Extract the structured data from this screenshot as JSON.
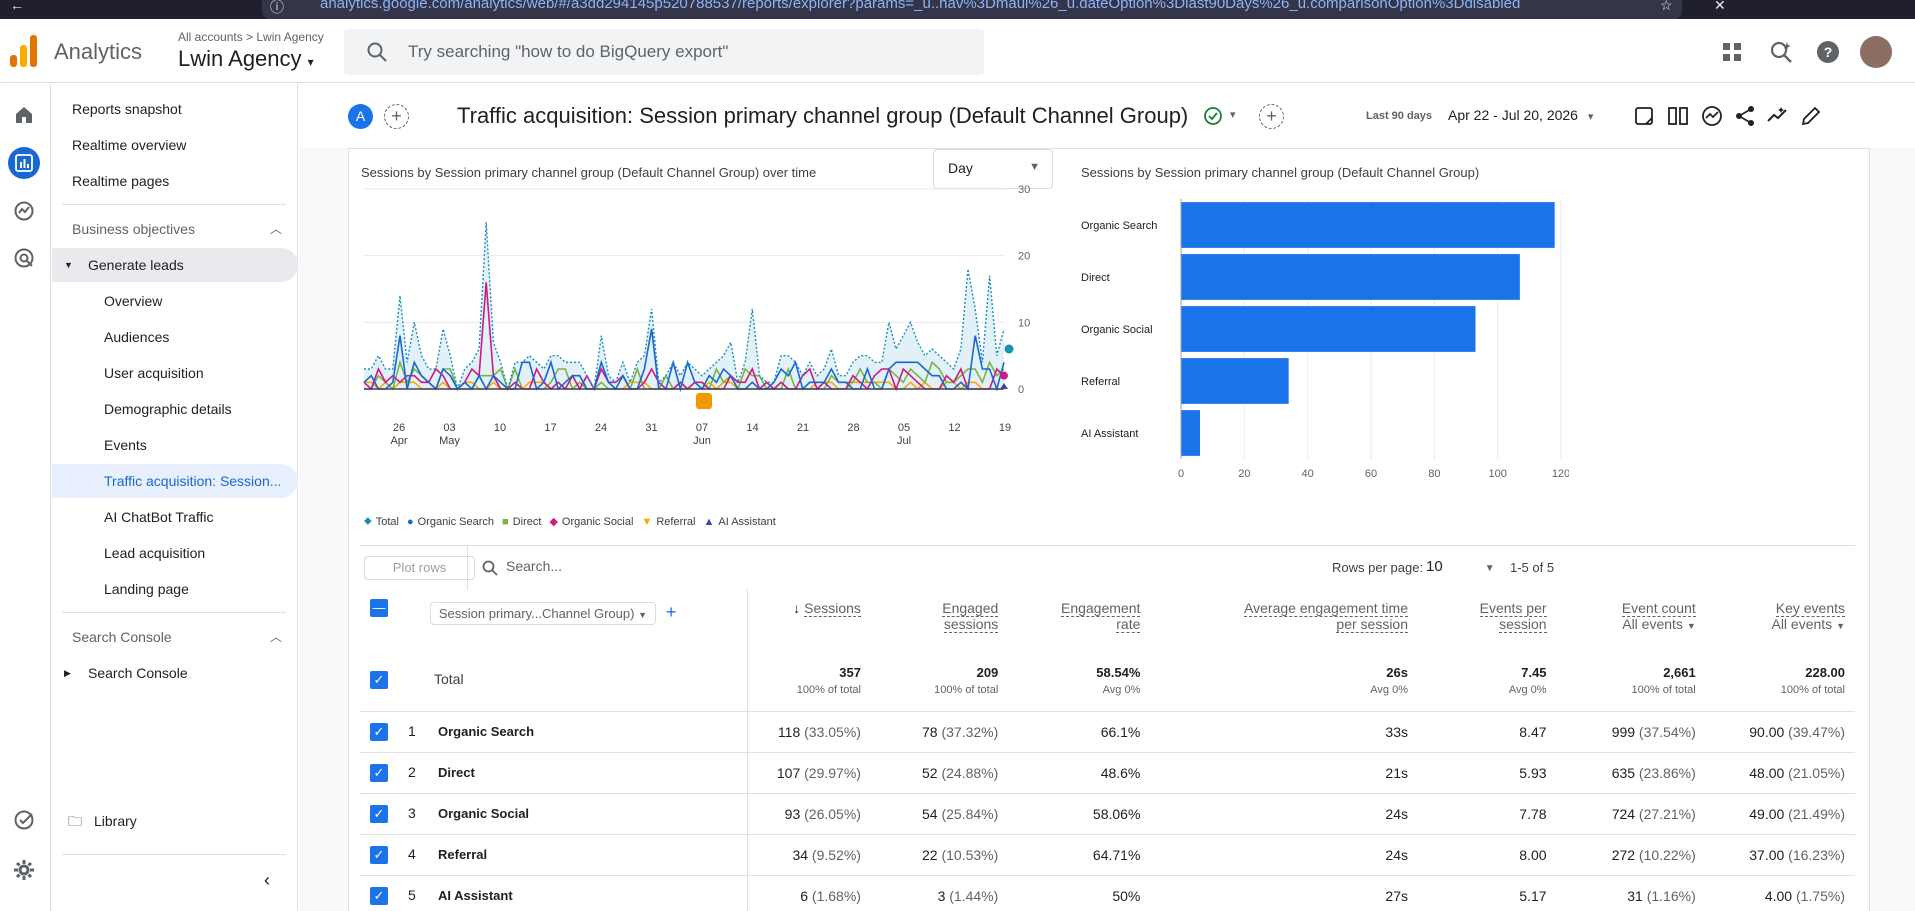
{
  "browser": {
    "url": "analytics.google.com/analytics/web/#/a3dd294145p520788537/reports/explorer?params=_u..nav%3Dmaui%26_u.dateOption%3Dlast90Days%26_u.comparisonOption%3Ddisabled"
  },
  "header": {
    "app_name": "Analytics",
    "account_breadcrumb": "All accounts > Lwin Agency",
    "account_name": "Lwin Agency",
    "search_placeholder": "Try searching \"how to do BigQuery export\""
  },
  "nav": {
    "items": [
      {
        "label": "Reports snapshot"
      },
      {
        "label": "Realtime overview"
      },
      {
        "label": "Realtime pages"
      },
      {
        "label": "Business objectives"
      },
      {
        "label": "Generate leads"
      },
      {
        "label": "Overview"
      },
      {
        "label": "Audiences"
      },
      {
        "label": "User acquisition"
      },
      {
        "label": "Demographic details"
      },
      {
        "label": "Events"
      },
      {
        "label": "Traffic acquisition: Session..."
      },
      {
        "label": "AI ChatBot Traffic"
      },
      {
        "label": "Lead acquisition"
      },
      {
        "label": "Landing page"
      },
      {
        "label": "Search Console"
      },
      {
        "label": "Search Console"
      },
      {
        "label": "Library"
      }
    ]
  },
  "title_bar": {
    "avatar_letter": "A",
    "page_title": "Traffic acquisition: Session primary channel group (Default Channel Group)",
    "date_label": "Last 90 days",
    "date_range": "Apr 22 - Jul 20, 2026"
  },
  "line_chart": {
    "title": "Sessions by Session primary channel group (Default Channel Group) over time",
    "granularity": "Day",
    "legend": [
      "Total",
      "Organic Search",
      "Direct",
      "Organic Social",
      "Referral",
      "AI Assistant"
    ],
    "colors": {
      "total": "#1a8fb8",
      "organic_search": "#1967d2",
      "direct": "#7cb342",
      "organic_social": "#d01884",
      "referral": "#f9ab00",
      "ai_assistant": "#3949ab"
    },
    "y_ticks": [
      "30",
      "20",
      "10",
      "0"
    ],
    "x_ticks": [
      {
        "d": "26",
        "m": "Apr"
      },
      {
        "d": "03",
        "m": "May"
      },
      {
        "d": "10",
        "m": ""
      },
      {
        "d": "17",
        "m": ""
      },
      {
        "d": "24",
        "m": ""
      },
      {
        "d": "31",
        "m": ""
      },
      {
        "d": "07",
        "m": "Jun"
      },
      {
        "d": "14",
        "m": ""
      },
      {
        "d": "21",
        "m": ""
      },
      {
        "d": "28",
        "m": ""
      },
      {
        "d": "05",
        "m": "Jul"
      },
      {
        "d": "12",
        "m": ""
      },
      {
        "d": "19",
        "m": ""
      }
    ]
  },
  "chart_data": {
    "type": "bar",
    "title": "Sessions by Session primary channel group (Default Channel Group)",
    "categories": [
      "Organic Search",
      "Direct",
      "Organic Social",
      "Referral",
      "AI Assistant"
    ],
    "values": [
      118,
      107,
      93,
      34,
      6
    ],
    "xlim": [
      0,
      120
    ],
    "x_ticks": [
      "0",
      "20",
      "40",
      "60",
      "80",
      "100",
      "120"
    ],
    "color": "#1a73e8"
  },
  "table": {
    "plot_rows": "Plot rows",
    "search_placeholder": "Search...",
    "rows_per_page_label": "Rows per page:",
    "rows_per_page": "10",
    "pagination": "1-5 of 5",
    "dimension": "Session primary...Channel Group)",
    "headers": [
      {
        "l1": "Sessions",
        "l2": ""
      },
      {
        "l1": "Engaged",
        "l2": "sessions"
      },
      {
        "l1": "Engagement",
        "l2": "rate"
      },
      {
        "l1": "Average engagement time",
        "l2": "per session"
      },
      {
        "l1": "Events per",
        "l2": "session"
      },
      {
        "l1": "Event count",
        "l2": "All events"
      },
      {
        "l1": "Key events",
        "l2": "All events"
      }
    ],
    "total": {
      "label": "Total",
      "cells": [
        {
          "v": "357",
          "s": "100% of total"
        },
        {
          "v": "209",
          "s": "100% of total"
        },
        {
          "v": "58.54%",
          "s": "Avg 0%"
        },
        {
          "v": "26s",
          "s": "Avg 0%"
        },
        {
          "v": "7.45",
          "s": "Avg 0%"
        },
        {
          "v": "2,661",
          "s": "100% of total"
        },
        {
          "v": "228.00",
          "s": "100% of total"
        }
      ]
    },
    "rows": [
      {
        "n": "1",
        "name": "Organic Search",
        "c": [
          [
            "118",
            "(33.05%)"
          ],
          [
            "78",
            "(37.32%)"
          ],
          [
            "66.1%",
            ""
          ],
          [
            "33s",
            ""
          ],
          [
            "8.47",
            ""
          ],
          [
            "999",
            "(37.54%)"
          ],
          [
            "90.00",
            "(39.47%)"
          ]
        ]
      },
      {
        "n": "2",
        "name": "Direct",
        "c": [
          [
            "107",
            "(29.97%)"
          ],
          [
            "52",
            "(24.88%)"
          ],
          [
            "48.6%",
            ""
          ],
          [
            "21s",
            ""
          ],
          [
            "5.93",
            ""
          ],
          [
            "635",
            "(23.86%)"
          ],
          [
            "48.00",
            "(21.05%)"
          ]
        ]
      },
      {
        "n": "3",
        "name": "Organic Social",
        "c": [
          [
            "93",
            "(26.05%)"
          ],
          [
            "54",
            "(25.84%)"
          ],
          [
            "58.06%",
            ""
          ],
          [
            "24s",
            ""
          ],
          [
            "7.78",
            ""
          ],
          [
            "724",
            "(27.21%)"
          ],
          [
            "49.00",
            "(21.49%)"
          ]
        ]
      },
      {
        "n": "4",
        "name": "Referral",
        "c": [
          [
            "34",
            "(9.52%)"
          ],
          [
            "22",
            "(10.53%)"
          ],
          [
            "64.71%",
            ""
          ],
          [
            "24s",
            ""
          ],
          [
            "8.00",
            ""
          ],
          [
            "272",
            "(10.22%)"
          ],
          [
            "37.00",
            "(16.23%)"
          ]
        ]
      },
      {
        "n": "5",
        "name": "AI Assistant",
        "c": [
          [
            "6",
            "(1.68%)"
          ],
          [
            "3",
            "(1.44%)"
          ],
          [
            "50%",
            ""
          ],
          [
            "27s",
            ""
          ],
          [
            "5.17",
            ""
          ],
          [
            "31",
            "(1.16%)"
          ],
          [
            "4.00",
            "(1.75%)"
          ]
        ]
      }
    ]
  }
}
